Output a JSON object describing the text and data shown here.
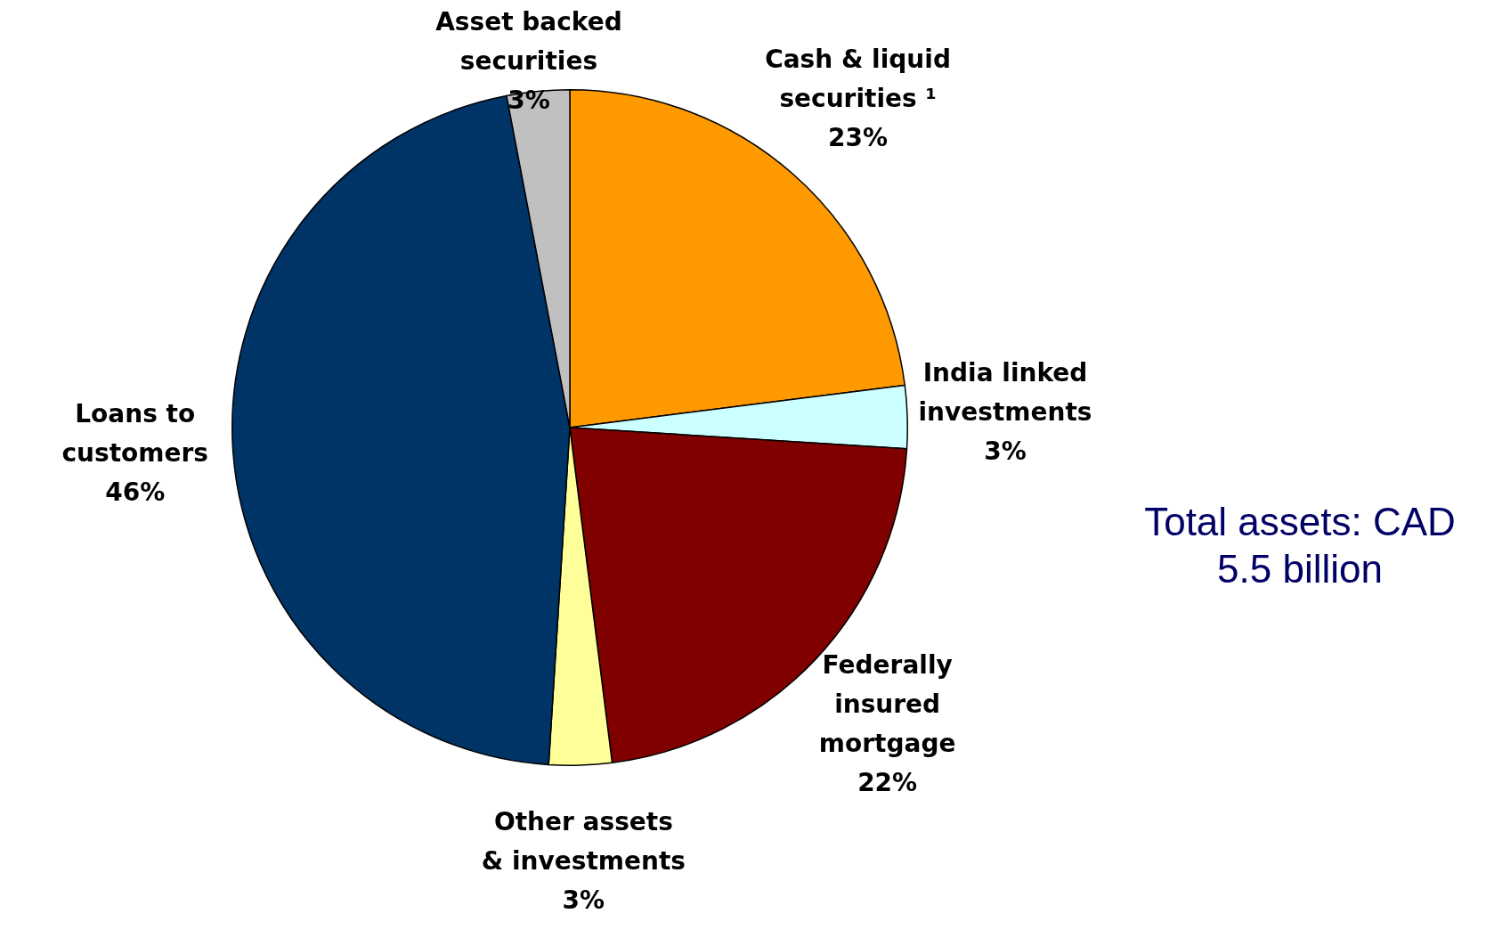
{
  "chart_data": {
    "type": "pie",
    "categories": [
      "Cash & liquid securities ¹",
      "India linked investments",
      "Federally insured mortgage",
      "Other assets & investments",
      "Loans to customers",
      "Asset backed securities"
    ],
    "values": [
      23,
      3,
      22,
      3,
      46,
      3
    ],
    "colors": [
      "#ff9900",
      "#ccffff",
      "#800000",
      "#ffff99",
      "#003366",
      "#c0c0c0"
    ],
    "value_labels": [
      "23%",
      "3%",
      "22%",
      "3%",
      "46%",
      "3%"
    ],
    "legend": false,
    "annotations": [
      "Total assets: CAD 5.5 billion"
    ]
  }
}
